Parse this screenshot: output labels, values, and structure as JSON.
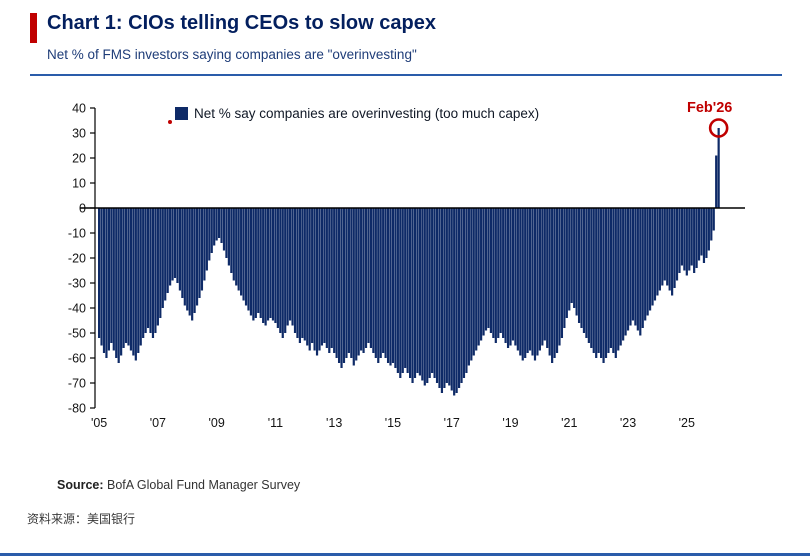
{
  "header": {
    "title": "Chart 1: CIOs telling CEOs to slow capex",
    "subtitle": "Net % of FMS investors saying companies are \"overinvesting\""
  },
  "legend": {
    "label": "Net % say companies are overinvesting (too much capex)"
  },
  "annotation": {
    "label": "Feb'26"
  },
  "footer": {
    "source_label": "Source:",
    "source_text": " BofA Global Fund Manager Survey",
    "chinese_source": "资料来源：美国银行"
  },
  "colors": {
    "bar": "#0e2a67",
    "red": "#c00000",
    "navy": "#031f5e",
    "rule": "#2a5caa"
  },
  "chart_data": {
    "type": "bar",
    "title": "Net % of FMS investors saying companies are overinvesting",
    "xlabel": "",
    "ylabel": "Net %",
    "ylim": [
      -80,
      40
    ],
    "yticks": [
      40,
      30,
      20,
      10,
      0,
      -10,
      -20,
      -30,
      -40,
      -50,
      -60,
      -70,
      -80
    ],
    "grid": false,
    "legend_position": "top-left-inside",
    "x_start": "2005-01",
    "x_end": "2026-02",
    "xticks": [
      {
        "index": 0,
        "label": "'05"
      },
      {
        "index": 24,
        "label": "'07"
      },
      {
        "index": 48,
        "label": "'09"
      },
      {
        "index": 72,
        "label": "'11"
      },
      {
        "index": 96,
        "label": "'13"
      },
      {
        "index": 120,
        "label": "'15"
      },
      {
        "index": 144,
        "label": "'17"
      },
      {
        "index": 168,
        "label": "'19"
      },
      {
        "index": 192,
        "label": "'21"
      },
      {
        "index": 216,
        "label": "'23"
      },
      {
        "index": 240,
        "label": "'25"
      }
    ],
    "highlight_last_point": true,
    "values": [
      -52,
      -55,
      -58,
      -60,
      -57,
      -54,
      -57,
      -60,
      -62,
      -59,
      -56,
      -54,
      -55,
      -57,
      -59,
      -61,
      -58,
      -55,
      -52,
      -50,
      -48,
      -50,
      -52,
      -50,
      -47,
      -44,
      -40,
      -37,
      -34,
      -31,
      -29,
      -28,
      -30,
      -33,
      -36,
      -39,
      -41,
      -43,
      -45,
      -42,
      -39,
      -36,
      -33,
      -29,
      -25,
      -21,
      -18,
      -15,
      -13,
      -12,
      -14,
      -17,
      -20,
      -23,
      -26,
      -29,
      -31,
      -33,
      -35,
      -37,
      -39,
      -41,
      -43,
      -45,
      -44,
      -42,
      -44,
      -46,
      -47,
      -45,
      -44,
      -45,
      -46,
      -48,
      -50,
      -52,
      -50,
      -47,
      -45,
      -47,
      -50,
      -52,
      -54,
      -52,
      -53,
      -55,
      -57,
      -54,
      -57,
      -59,
      -57,
      -55,
      -54,
      -56,
      -58,
      -56,
      -58,
      -60,
      -62,
      -64,
      -62,
      -60,
      -58,
      -60,
      -63,
      -61,
      -59,
      -57,
      -58,
      -56,
      -54,
      -56,
      -58,
      -60,
      -62,
      -60,
      -58,
      -60,
      -62,
      -63,
      -62,
      -64,
      -66,
      -68,
      -66,
      -64,
      -66,
      -68,
      -70,
      -68,
      -66,
      -67,
      -69,
      -71,
      -70,
      -68,
      -66,
      -68,
      -70,
      -72,
      -74,
      -72,
      -70,
      -71,
      -73,
      -75,
      -74,
      -72,
      -70,
      -68,
      -66,
      -63,
      -61,
      -59,
      -57,
      -55,
      -53,
      -51,
      -49,
      -48,
      -50,
      -52,
      -54,
      -52,
      -50,
      -52,
      -54,
      -56,
      -55,
      -53,
      -55,
      -57,
      -59,
      -61,
      -60,
      -58,
      -57,
      -59,
      -61,
      -59,
      -57,
      -55,
      -53,
      -56,
      -59,
      -62,
      -60,
      -58,
      -55,
      -52,
      -48,
      -44,
      -41,
      -38,
      -40,
      -43,
      -46,
      -48,
      -50,
      -52,
      -54,
      -56,
      -58,
      -60,
      -58,
      -60,
      -62,
      -60,
      -58,
      -56,
      -58,
      -60,
      -57,
      -55,
      -53,
      -51,
      -49,
      -47,
      -45,
      -47,
      -49,
      -51,
      -48,
      -45,
      -43,
      -41,
      -39,
      -37,
      -35,
      -33,
      -31,
      -29,
      -31,
      -33,
      -35,
      -32,
      -29,
      -26,
      -23,
      -25,
      -27,
      -25,
      -23,
      -26,
      -24,
      -21,
      -19,
      -22,
      -20,
      -17,
      -13,
      -9,
      21,
      32
    ]
  }
}
